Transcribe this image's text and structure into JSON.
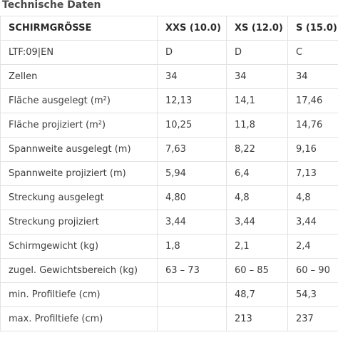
{
  "title": "Technische Daten",
  "table": {
    "headers": [
      "SCHIRMGRÖSSE",
      "XXS (10.0)",
      "XS (12.0)",
      "S (15.0)"
    ],
    "rows": [
      [
        "LTF:09|EN",
        "D",
        "D",
        "C"
      ],
      [
        "Zellen",
        "34",
        "34",
        "34"
      ],
      [
        "Fläche ausgelegt (m²)",
        "12,13",
        "14,1",
        "17,46"
      ],
      [
        "Fläche projiziert (m²)",
        "10,25",
        "11,8",
        "14,76"
      ],
      [
        "Spannweite ausgelegt (m)",
        "7,63",
        "8,22",
        "9,16"
      ],
      [
        "Spannweite projiziert (m)",
        "5,94",
        "6,4",
        "7,13"
      ],
      [
        "Streckung ausgelegt",
        "4,80",
        "4,8",
        "4,8"
      ],
      [
        "Streckung projiziert",
        "3,44",
        "3,44",
        "3,44"
      ],
      [
        "Schirmgewicht (kg)",
        "1,8",
        "2,1",
        "2,4"
      ],
      [
        "zugel. Gewichtsbereich (kg)",
        "63 – 73",
        "60 – 85",
        "60 – 90"
      ],
      [
        "min. Profiltiefe (cm)",
        "",
        "48,7",
        "54,3"
      ],
      [
        "max. Profiltiefe (cm)",
        "",
        "213",
        "237"
      ]
    ]
  }
}
